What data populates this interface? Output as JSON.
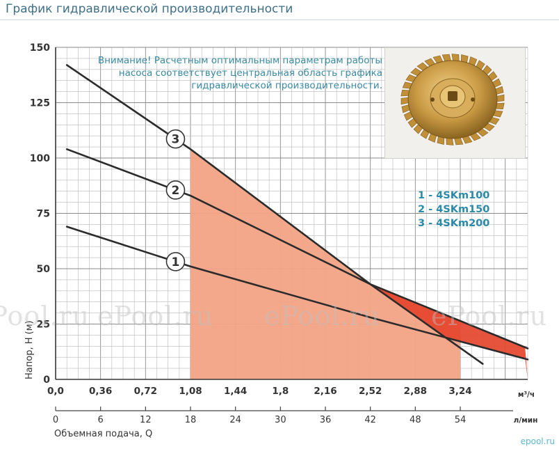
{
  "page": {
    "title": "График гидравлической производительности",
    "note_lines": [
      "Внимание! Расчетным оптимальным параметрам работы",
      "насоса соответствует центральная область графика",
      "гидравлической производительности."
    ],
    "watermark": "ePool.ru",
    "brand": "epool.ru"
  },
  "chart_data": {
    "type": "line",
    "ylabel": "Напор, H (м)",
    "xlabel": "Объемная подача, Q",
    "ylim": [
      0,
      150
    ],
    "yticks": [
      "0",
      "25",
      "50",
      "75",
      "100",
      "125",
      "150"
    ],
    "x_m3h": {
      "unit": "м³/ч",
      "ticks": [
        "0,0",
        "0,36",
        "0,72",
        "1,08",
        "1,44",
        "1,8",
        "2,16",
        "2,52",
        "2,88",
        "3,24"
      ]
    },
    "x_lmin": {
      "unit": "л/мин",
      "ticks": [
        "0",
        "6",
        "12",
        "18",
        "24",
        "30",
        "36",
        "42",
        "48",
        "54"
      ]
    },
    "xlim_m3h": [
      0,
      3.78
    ],
    "grid": true,
    "series": [
      {
        "name": "1 - 4SKm100",
        "label": "1",
        "color": "#2b2b2b",
        "x": [
          0.09,
          1.08,
          2.52,
          3.78
        ],
        "y": [
          69,
          51,
          28,
          9
        ]
      },
      {
        "name": "2 - 4SKm150",
        "label": "2",
        "color": "#2b2b2b",
        "x": [
          0.09,
          1.08,
          2.52,
          3.78
        ],
        "y": [
          104,
          83,
          43,
          14
        ]
      },
      {
        "name": "3 - 4SKm200",
        "label": "3",
        "color": "#2b2b2b",
        "x": [
          0.09,
          1.08,
          2.52,
          3.42
        ],
        "y": [
          142,
          104,
          43,
          7
        ]
      }
    ],
    "optimal_region": {
      "x": [
        1.08,
        3.24
      ],
      "color": "#f3a385"
    },
    "high_region_color": "#e5452c"
  }
}
